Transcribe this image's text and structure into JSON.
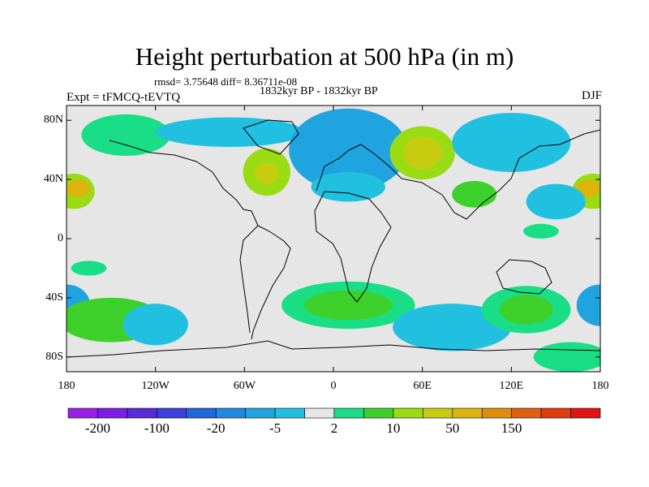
{
  "title": "Height perturbation at 500 hPa (in m)",
  "stats": "rmsd= 3.75648 diff= 8.36711e-08",
  "period": "1832kyr BP - 1832kyr BP",
  "experiment": "Expt = tFMCQ-tEVTQ",
  "season": "DJF",
  "map": {
    "projection": "cylindrical-equidistant",
    "lon_range": [
      -180,
      180
    ],
    "lat_range": [
      -90,
      90
    ],
    "y_ticks": [
      {
        "lat": 80,
        "label": "80N"
      },
      {
        "lat": 40,
        "label": "40N"
      },
      {
        "lat": 0,
        "label": "0"
      },
      {
        "lat": -40,
        "label": "40S"
      },
      {
        "lat": -80,
        "label": "80S"
      }
    ],
    "x_ticks": [
      {
        "lon": -180,
        "label": "180"
      },
      {
        "lon": -120,
        "label": "120W"
      },
      {
        "lon": -60,
        "label": "60W"
      },
      {
        "lon": 0,
        "label": "0"
      },
      {
        "lon": 60,
        "label": "60E"
      },
      {
        "lon": 120,
        "label": "120E"
      },
      {
        "lon": 180,
        "label": "180"
      }
    ],
    "background_color": "#e6e6e6"
  },
  "colorbar": {
    "colors": [
      "#9a1fe6",
      "#7d1ee6",
      "#5a2ad9",
      "#3b3fe0",
      "#2066dd",
      "#1f88e0",
      "#1fa4e0",
      "#22c0e0",
      "#e6e6e6",
      "#19de86",
      "#3ed02a",
      "#9adc14",
      "#c8cc10",
      "#dcb40c",
      "#e08c0c",
      "#e06010",
      "#e03c10",
      "#e01414"
    ],
    "labels": [
      "-200",
      "-100",
      "-20",
      "-5",
      "2",
      "10",
      "50",
      "150"
    ]
  },
  "fields": [
    {
      "lon": -175,
      "lat": 32,
      "rx": 14,
      "ry": 12,
      "level": 3
    },
    {
      "lon": 175,
      "lat": 32,
      "rx": 14,
      "ry": 12,
      "level": 3
    },
    {
      "lon": -172,
      "lat": 34,
      "rx": 8,
      "ry": 6,
      "level": 5
    },
    {
      "lon": 172,
      "lat": 34,
      "rx": 8,
      "ry": 6,
      "level": 5
    },
    {
      "lon": -140,
      "lat": 70,
      "rx": 30,
      "ry": 14,
      "level": 1
    },
    {
      "lon": -70,
      "lat": 72,
      "rx": 50,
      "ry": 10,
      "level": -1
    },
    {
      "lon": -45,
      "lat": 45,
      "rx": 16,
      "ry": 16,
      "level": 3
    },
    {
      "lon": -45,
      "lat": 44,
      "rx": 8,
      "ry": 7,
      "level": 4
    },
    {
      "lon": 10,
      "lat": 60,
      "rx": 40,
      "ry": 28,
      "level": -2
    },
    {
      "lon": 10,
      "lat": 35,
      "rx": 25,
      "ry": 10,
      "level": -1
    },
    {
      "lon": 60,
      "lat": 58,
      "rx": 22,
      "ry": 18,
      "level": 3
    },
    {
      "lon": 60,
      "lat": 58,
      "rx": 13,
      "ry": 11,
      "level": 4
    },
    {
      "lon": 120,
      "lat": 65,
      "rx": 40,
      "ry": 20,
      "level": -1
    },
    {
      "lon": 95,
      "lat": 30,
      "rx": 15,
      "ry": 9,
      "level": 2
    },
    {
      "lon": 150,
      "lat": 25,
      "rx": 20,
      "ry": 12,
      "level": -1
    },
    {
      "lon": 140,
      "lat": 5,
      "rx": 12,
      "ry": 5,
      "level": 1
    },
    {
      "lon": -165,
      "lat": -20,
      "rx": 12,
      "ry": 5,
      "level": 1
    },
    {
      "lon": -180,
      "lat": -45,
      "rx": 16,
      "ry": 14,
      "level": -2
    },
    {
      "lon": 180,
      "lat": -45,
      "rx": 16,
      "ry": 14,
      "level": -2
    },
    {
      "lon": -150,
      "lat": -55,
      "rx": 35,
      "ry": 15,
      "level": 2
    },
    {
      "lon": -120,
      "lat": -58,
      "rx": 22,
      "ry": 14,
      "level": -1
    },
    {
      "lon": 10,
      "lat": -45,
      "rx": 45,
      "ry": 16,
      "level": 1
    },
    {
      "lon": 10,
      "lat": -45,
      "rx": 30,
      "ry": 10,
      "level": 2
    },
    {
      "lon": 80,
      "lat": -60,
      "rx": 40,
      "ry": 16,
      "level": -1
    },
    {
      "lon": 130,
      "lat": -48,
      "rx": 30,
      "ry": 16,
      "level": 1
    },
    {
      "lon": 130,
      "lat": -48,
      "rx": 18,
      "ry": 10,
      "level": 2
    },
    {
      "lon": 160,
      "lat": -80,
      "rx": 25,
      "ry": 10,
      "level": 1
    }
  ]
}
